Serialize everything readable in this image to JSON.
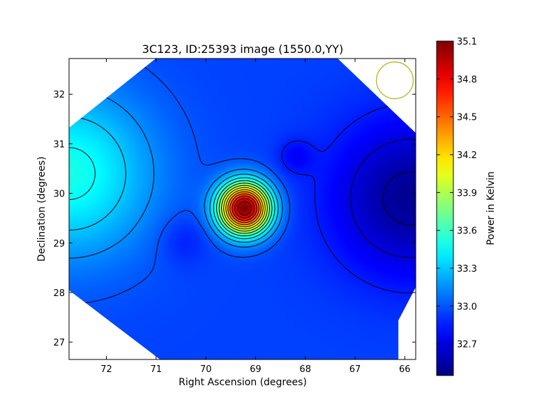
{
  "chart_data": {
    "type": "heatmap",
    "title": "3C123, ID:25393 image (1550.0,YY)",
    "xlabel": "Right Ascension (degrees)",
    "ylabel": "Declination (degrees)",
    "xlim": [
      72.75,
      65.78
    ],
    "ylim": [
      26.65,
      32.72
    ],
    "x_ticks": [
      72,
      71,
      70,
      69,
      68,
      67,
      66
    ],
    "y_ticks": [
      27,
      28,
      29,
      30,
      31,
      32
    ],
    "colorbar": {
      "label": "Power in Kelvin",
      "range": [
        32.45,
        35.1
      ],
      "ticks": [
        "35.1",
        "34.8",
        "34.5",
        "34.2",
        "33.9",
        "33.6",
        "33.3",
        "33.0",
        "32.7"
      ],
      "colormap": "jet"
    },
    "field": {
      "background": 32.95,
      "components": [
        {
          "ra": 69.22,
          "dec": 29.7,
          "amplitude": 2.15,
          "sigma": 0.36
        },
        {
          "ra": 72.75,
          "dec": 30.4,
          "amplitude": 0.55,
          "sigma": 1.2
        },
        {
          "ra": 65.9,
          "dec": 29.9,
          "amplitude": -0.45,
          "sigma": 1.1
        },
        {
          "ra": 68.2,
          "dec": 30.75,
          "amplitude": -0.15,
          "sigma": 0.25
        },
        {
          "ra": 70.45,
          "dec": 29.05,
          "amplitude": -0.12,
          "sigma": 0.35
        }
      ]
    },
    "beam": {
      "ra": 66.2,
      "dec": 32.28,
      "radius_deg": 0.37,
      "color": "#b5b51e"
    },
    "contours": true
  }
}
